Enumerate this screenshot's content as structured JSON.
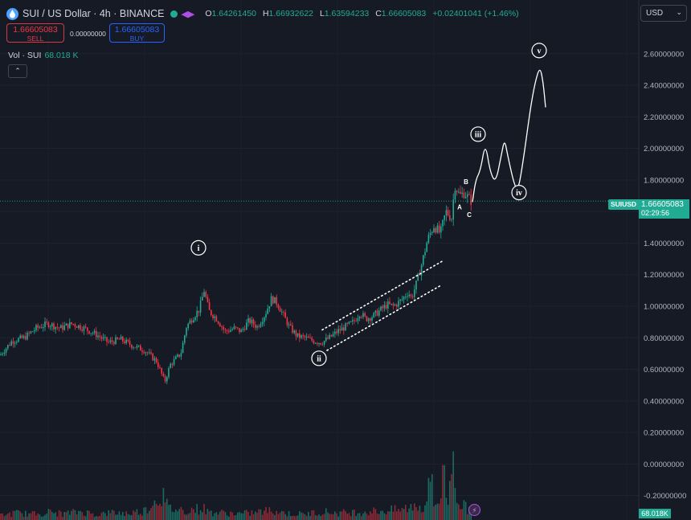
{
  "header": {
    "title": "SUI / US Dollar · 4h · BINANCE",
    "ohlc": {
      "o_label": "O",
      "o": "1.64261450",
      "h_label": "H",
      "h": "1.66932622",
      "l_label": "L",
      "l": "1.63594233",
      "c_label": "C",
      "c": "1.66605083",
      "change": "+0.02401041 (+1.46%)"
    },
    "icons": [
      "sui-logo-icon",
      "market-open-dot-icon",
      "alert-icon"
    ]
  },
  "trade": {
    "sell_price": "1.66605083",
    "sell_label": "SELL",
    "spread": "0.00000000",
    "buy_price": "1.66605083",
    "buy_label": "BUY"
  },
  "volume_legend": {
    "label": "Vol · SUI",
    "value": "68.018 K"
  },
  "collapse_label": "⌃",
  "currency_selector": {
    "value": "USD"
  },
  "last_price_tag": {
    "symbol": "SUIUSD",
    "price": "1.66605083",
    "countdown": "02:29:56"
  },
  "volume_tag": "68.018K",
  "colors": {
    "up": "#22ab94",
    "down": "#f23645",
    "background": "#161a25",
    "annotation": "#ffffff"
  },
  "chart_data": {
    "type": "line",
    "ylim": [
      -0.25,
      2.8
    ],
    "y_ticks": [
      "2.60000000",
      "2.40000000",
      "2.20000000",
      "2.00000000",
      "1.80000000",
      "1.60000000",
      "1.40000000",
      "1.20000000",
      "1.00000000",
      "0.80000000",
      "0.60000000",
      "0.40000000",
      "0.20000000",
      "0.00000000",
      "-0.20000000"
    ],
    "y_tick_values": [
      2.6,
      2.4,
      2.2,
      2.0,
      1.8,
      1.6,
      1.4,
      1.2,
      1.0,
      0.8,
      0.6,
      0.4,
      0.2,
      0.0,
      -0.2
    ],
    "price_path": [
      [
        0,
        0.69
      ],
      [
        15,
        0.78
      ],
      [
        30,
        0.8
      ],
      [
        45,
        0.86
      ],
      [
        60,
        0.89
      ],
      [
        75,
        0.86
      ],
      [
        90,
        0.89
      ],
      [
        105,
        0.86
      ],
      [
        120,
        0.82
      ],
      [
        135,
        0.77
      ],
      [
        150,
        0.79
      ],
      [
        165,
        0.75
      ],
      [
        180,
        0.72
      ],
      [
        195,
        0.65
      ],
      [
        205,
        0.52
      ],
      [
        212,
        0.63
      ],
      [
        225,
        0.7
      ],
      [
        232,
        0.87
      ],
      [
        240,
        0.93
      ],
      [
        248,
        0.98
      ],
      [
        254,
        1.1
      ],
      [
        260,
        0.97
      ],
      [
        270,
        0.92
      ],
      [
        280,
        0.84
      ],
      [
        292,
        0.86
      ],
      [
        300,
        0.84
      ],
      [
        310,
        0.91
      ],
      [
        320,
        0.87
      ],
      [
        330,
        0.95
      ],
      [
        338,
        1.05
      ],
      [
        345,
        1.02
      ],
      [
        352,
        0.95
      ],
      [
        360,
        0.87
      ],
      [
        370,
        0.81
      ],
      [
        380,
        0.8
      ],
      [
        390,
        0.78
      ],
      [
        400,
        0.77
      ],
      [
        410,
        0.8
      ],
      [
        420,
        0.84
      ],
      [
        430,
        0.87
      ],
      [
        440,
        0.9
      ],
      [
        448,
        0.96
      ],
      [
        455,
        0.92
      ],
      [
        465,
        0.94
      ],
      [
        472,
        0.97
      ],
      [
        482,
        1.01
      ],
      [
        490,
        1.0
      ],
      [
        500,
        1.04
      ],
      [
        508,
        1.09
      ],
      [
        512,
        1.05
      ],
      [
        518,
        1.14
      ],
      [
        525,
        1.27
      ],
      [
        532,
        1.42
      ],
      [
        540,
        1.51
      ],
      [
        548,
        1.46
      ],
      [
        555,
        1.6
      ],
      [
        562,
        1.56
      ],
      [
        566,
        1.77
      ],
      [
        572,
        1.7
      ],
      [
        578,
        1.72
      ],
      [
        584,
        1.68
      ],
      [
        588,
        1.66
      ]
    ],
    "volume": [
      [
        0,
        0.012
      ],
      [
        20,
        0.018
      ],
      [
        40,
        0.015
      ],
      [
        60,
        0.02
      ],
      [
        80,
        0.016
      ],
      [
        100,
        0.022
      ],
      [
        120,
        0.014
      ],
      [
        140,
        0.019
      ],
      [
        160,
        0.017
      ],
      [
        180,
        0.024
      ],
      [
        203,
        0.07
      ],
      [
        204,
        0.05
      ],
      [
        210,
        0.03
      ],
      [
        230,
        0.025
      ],
      [
        253,
        0.03
      ],
      [
        260,
        0.02
      ],
      [
        280,
        0.018
      ],
      [
        300,
        0.016
      ],
      [
        320,
        0.02
      ],
      [
        340,
        0.025
      ],
      [
        360,
        0.016
      ],
      [
        380,
        0.015
      ],
      [
        400,
        0.022
      ],
      [
        420,
        0.018
      ],
      [
        440,
        0.02
      ],
      [
        460,
        0.022
      ],
      [
        480,
        0.024
      ],
      [
        500,
        0.026
      ],
      [
        520,
        0.04
      ],
      [
        527,
        0.028
      ],
      [
        537,
        0.1
      ],
      [
        540,
        0.035
      ],
      [
        548,
        0.06
      ],
      [
        552,
        0.12
      ],
      [
        556,
        0.05
      ],
      [
        563,
        0.1
      ],
      [
        565,
        0.15
      ],
      [
        570,
        0.05
      ],
      [
        580,
        0.03
      ]
    ],
    "projection": [
      [
        588,
        1.66
      ],
      [
        592,
        1.8
      ],
      [
        598,
        1.86
      ],
      [
        604,
        2.04
      ],
      [
        610,
        1.85
      ],
      [
        617,
        1.78
      ],
      [
        624,
        1.96
      ],
      [
        628,
        2.06
      ],
      [
        632,
        1.95
      ],
      [
        640,
        1.77
      ],
      [
        645,
        1.73
      ],
      [
        652,
        1.95
      ],
      [
        660,
        2.25
      ],
      [
        666,
        2.42
      ],
      [
        672,
        2.52
      ],
      [
        676,
        2.42
      ],
      [
        679,
        2.26
      ]
    ],
    "channel_upper": [
      [
        401,
        0.85
      ],
      [
        552,
        1.29
      ]
    ],
    "channel_lower": [
      [
        407,
        0.72
      ],
      [
        548,
        1.13
      ]
    ],
    "wave_labels": [
      {
        "text": "i",
        "x": 247,
        "y": 1.37
      },
      {
        "text": "ii",
        "x": 397,
        "y": 0.67
      },
      {
        "text": "iii",
        "x": 595,
        "y": 2.09
      },
      {
        "text": "iv",
        "x": 646,
        "y": 1.72
      },
      {
        "text": "v",
        "x": 671,
        "y": 2.62
      }
    ],
    "abc_labels": [
      {
        "text": "A",
        "x": 572,
        "y": 1.63
      },
      {
        "text": "B",
        "x": 580,
        "y": 1.79
      },
      {
        "text": "C",
        "x": 584,
        "y": 1.58
      }
    ],
    "last_price": 1.66605083
  }
}
